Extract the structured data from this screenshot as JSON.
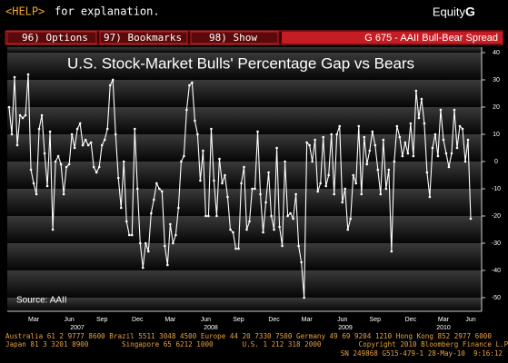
{
  "header": {
    "help_key": "<HELP>",
    "help_text": "for explanation.",
    "product": "Equity",
    "product_key": "G"
  },
  "menu": [
    "96) Options",
    "97) Bookmarks",
    "98) Show"
  ],
  "screen_title": "G 675 - AAII Bull-Bear Spread",
  "chart_data": {
    "type": "line",
    "title": "U.S. Stock-Market Bulls' Percentage Gap vs Bears",
    "source": "Source: AAII",
    "color": "#ffffff",
    "markers": true,
    "grid": true,
    "categories": [
      null,
      null,
      null,
      null,
      null,
      null,
      null,
      null,
      null,
      "Mar",
      null,
      null,
      null,
      null,
      null,
      null,
      null,
      null,
      null,
      null,
      null,
      null,
      "Jun",
      null,
      null,
      null,
      null,
      null,
      null,
      null,
      null,
      null,
      null,
      null,
      "Sep",
      null,
      null,
      null,
      null,
      null,
      null,
      null,
      null,
      null,
      null,
      null,
      null,
      "Dec",
      null,
      null,
      null,
      null,
      null,
      null,
      null,
      null,
      null,
      null,
      null,
      "Mar",
      null,
      null,
      null,
      null,
      null,
      null,
      null,
      null,
      null,
      null,
      null,
      null,
      "Jun",
      null,
      null,
      null,
      null,
      null,
      null,
      null,
      null,
      null,
      null,
      null,
      "Sep",
      null,
      null,
      null,
      null,
      null,
      null,
      null,
      null,
      null,
      null,
      null,
      null,
      "Dec",
      null,
      null,
      null,
      null,
      null,
      null,
      null,
      null,
      null,
      null,
      null,
      "Mar",
      null,
      null,
      null,
      null,
      null,
      null,
      null,
      null,
      null,
      null,
      null,
      null,
      "Jun",
      null,
      null,
      null,
      null,
      null,
      null,
      null,
      null,
      null,
      null,
      null,
      "Sep",
      null,
      null,
      null,
      null,
      null,
      null,
      null,
      null,
      null,
      null,
      null,
      null,
      "Dec",
      null,
      null,
      null,
      null,
      null,
      null,
      null,
      null,
      null,
      null,
      null,
      "Mar",
      null,
      null,
      null,
      null,
      null,
      null,
      null,
      null,
      null,
      "Jun"
    ],
    "year_labels": [
      "2007",
      "2008",
      "2009",
      "2010"
    ],
    "values": [
      20,
      10,
      31,
      6,
      17,
      16,
      17,
      32,
      -3,
      -8,
      -12,
      12,
      17,
      3,
      -9,
      11,
      -25,
      0,
      2,
      -1,
      -12,
      -2,
      -1,
      10,
      5,
      12,
      14,
      6,
      8,
      6,
      7,
      -2,
      -4,
      -2,
      6,
      8,
      12,
      28,
      30,
      10,
      -6,
      -17,
      0,
      -22,
      -27,
      -27,
      12,
      -10,
      -30,
      -39,
      -30,
      -33,
      -19,
      -14,
      -8,
      -10,
      -11,
      -31,
      -38,
      -23,
      -30,
      -27,
      -17,
      0,
      2,
      19,
      28,
      29,
      15,
      10,
      -7,
      4,
      -20,
      -20,
      12,
      -7,
      -20,
      1,
      -8,
      -5,
      -13,
      -25,
      -26,
      -32,
      -32,
      -8,
      -2,
      -25,
      -22,
      -10,
      -10,
      11,
      -12,
      -26,
      -15,
      -4,
      -20,
      -25,
      5,
      -24,
      -31,
      0,
      -20,
      -19,
      -21,
      -12,
      -31,
      -37,
      -50,
      7,
      6,
      0,
      8,
      -11,
      -8,
      9,
      -9,
      -5,
      10,
      -12,
      10,
      13,
      -15,
      -10,
      -25,
      -21,
      -5,
      -8,
      13,
      -12,
      9,
      -1,
      4,
      11,
      6,
      -3,
      -12,
      8,
      -10,
      -3,
      -33,
      0,
      13,
      9,
      2,
      7,
      3,
      14,
      2,
      26,
      16,
      23,
      14,
      -4,
      -13,
      5,
      10,
      2,
      19,
      8,
      3,
      -2,
      3,
      19,
      5,
      13,
      12,
      0,
      8,
      -21
    ],
    "ylim": [
      -55,
      42
    ],
    "yticks": [
      40,
      30,
      20,
      10,
      0,
      -10,
      -20,
      -30,
      -40,
      -50
    ]
  },
  "footer": [
    "Australia 61 2 9777 8600 Brazil 5511 3048 4500 Europe 44 20 7330 7500 Germany 49 69 9204 1210 Hong Kong 852 2977 6000",
    "Japan 81 3 3201 8900        Singapore 65 6212 1000       U.S. 1 212 318 2000         Copyright 2010 Bloomberg Finance L.P.",
    "SN 249868 G515-479-1 28-May-10  9:16:12"
  ]
}
